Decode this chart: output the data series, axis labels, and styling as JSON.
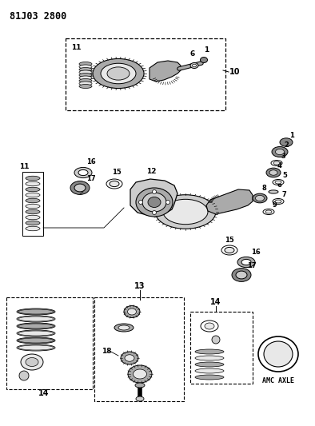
{
  "title": "81J03 2800",
  "bg_color": "#ffffff",
  "fg_color": "#000000",
  "amc_axle_label": "AMC AXLE",
  "figsize": [
    3.94,
    5.33
  ],
  "dpi": 100
}
